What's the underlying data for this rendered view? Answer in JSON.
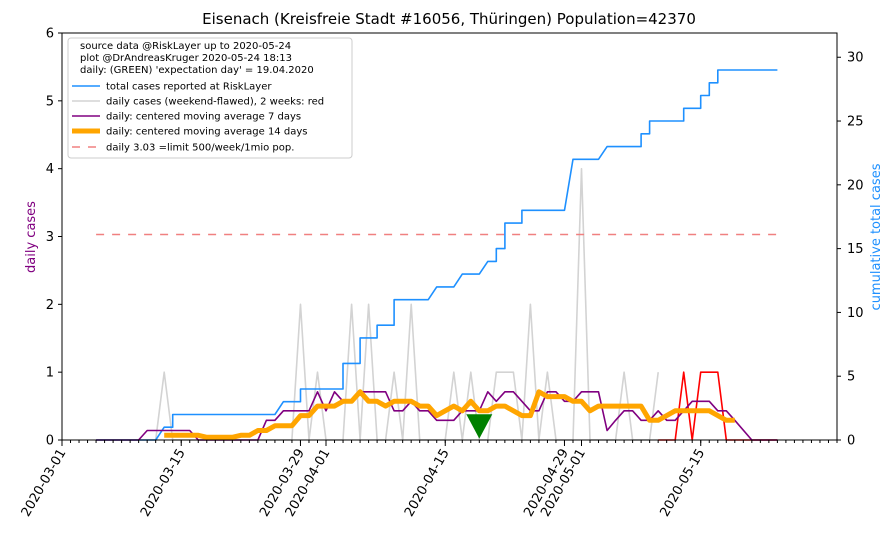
{
  "chart_data": {
    "type": "line",
    "title": "Eisenach (Kreisfreie Stadt #16056, Thüringen) Population=42370",
    "ylabel_left": "daily cases",
    "ylabel_right": "cumulative total cases",
    "ylim_left": [
      0,
      6
    ],
    "ylim_right": [
      0,
      31.9
    ],
    "yticks_left": [
      "0",
      "1",
      "2",
      "3",
      "4",
      "5",
      "6"
    ],
    "yticks_right": [
      "0",
      "5",
      "10",
      "15",
      "20",
      "25",
      "30"
    ],
    "xlim": [
      "2020-03-01",
      "2020-05-31"
    ],
    "xtick_labels": [
      "2020-03-01",
      "2020-03-15",
      "2020-03-29",
      "2020-04-01",
      "2020-04-15",
      "2020-04-29",
      "2020-05-01",
      "2020-05-15"
    ],
    "legend_position": "top-left",
    "legend_header": [
      "source data @RiskLayer up to 2020-05-24",
      "plot @DrAndreasKruger 2020-05-24 18:13",
      "daily: (GREEN) 'expectation day' = 19.04.2020"
    ],
    "expectation_day": "2020-04-19",
    "colors": {
      "total": "#1e90ff",
      "daily": "#d3d3d3",
      "daily_recent": "#ff0000",
      "ma7": "#800080",
      "ma14": "#ffa500",
      "limit": "#f08080",
      "expectation_marker": "#008000",
      "left_axis_label": "#800080",
      "right_axis_label": "#1e90ff"
    },
    "series": [
      {
        "name": "total cases reported at RiskLayer",
        "axis": "right",
        "x": [
          "2020-03-05",
          "2020-03-11",
          "2020-03-13",
          "2020-03-14",
          "2020-03-25",
          "2020-03-27",
          "2020-03-28",
          "2020-03-29",
          "2020-03-30",
          "2020-04-02",
          "2020-04-03",
          "2020-04-04",
          "2020-04-05",
          "2020-04-06",
          "2020-04-07",
          "2020-04-08",
          "2020-04-09",
          "2020-04-10",
          "2020-04-11",
          "2020-04-14",
          "2020-04-15",
          "2020-04-17",
          "2020-04-18",
          "2020-04-20",
          "2020-04-21",
          "2020-04-22",
          "2020-04-23",
          "2020-04-24",
          "2020-04-25",
          "2020-04-26",
          "2020-04-30",
          "2020-05-01",
          "2020-05-04",
          "2020-05-05",
          "2020-05-07",
          "2020-05-08",
          "2020-05-09",
          "2020-05-12",
          "2020-05-13",
          "2020-05-14",
          "2020-05-15",
          "2020-05-16",
          "2020-05-17",
          "2020-05-18",
          "2020-05-24"
        ],
        "y": [
          0,
          0,
          1,
          2,
          2,
          3,
          3,
          4,
          4,
          4,
          6,
          6,
          8,
          8,
          9,
          9,
          11,
          11,
          11,
          12,
          12,
          13,
          13,
          14,
          15,
          17,
          17,
          18,
          18,
          18,
          22,
          22,
          23,
          23,
          23,
          24,
          25,
          25,
          26,
          26,
          27,
          28,
          29,
          29,
          29
        ]
      },
      {
        "name": "daily cases (weekend-flawed), 2 weeks: red",
        "axis": "left",
        "x": [
          "2020-03-05",
          "2020-03-06",
          "2020-03-07",
          "2020-03-08",
          "2020-03-09",
          "2020-03-10",
          "2020-03-11",
          "2020-03-12",
          "2020-03-13",
          "2020-03-14",
          "2020-03-15",
          "2020-03-16",
          "2020-03-17",
          "2020-03-18",
          "2020-03-19",
          "2020-03-20",
          "2020-03-21",
          "2020-03-22",
          "2020-03-23",
          "2020-03-24",
          "2020-03-25",
          "2020-03-26",
          "2020-03-27",
          "2020-03-28",
          "2020-03-29",
          "2020-03-30",
          "2020-03-31",
          "2020-04-01",
          "2020-04-02",
          "2020-04-03",
          "2020-04-04",
          "2020-04-05",
          "2020-04-06",
          "2020-04-07",
          "2020-04-08",
          "2020-04-09",
          "2020-04-10",
          "2020-04-11",
          "2020-04-12",
          "2020-04-13",
          "2020-04-14",
          "2020-04-15",
          "2020-04-16",
          "2020-04-17",
          "2020-04-18",
          "2020-04-19",
          "2020-04-20",
          "2020-04-21",
          "2020-04-22",
          "2020-04-23",
          "2020-04-24",
          "2020-04-25",
          "2020-04-26",
          "2020-04-27",
          "2020-04-28",
          "2020-04-29",
          "2020-04-30",
          "2020-05-01",
          "2020-05-02",
          "2020-05-03",
          "2020-05-04",
          "2020-05-05",
          "2020-05-06",
          "2020-05-07",
          "2020-05-08",
          "2020-05-09",
          "2020-05-10"
        ],
        "y": [
          0,
          0,
          0,
          0,
          0,
          0,
          0,
          0,
          1,
          0,
          0,
          0,
          0,
          0,
          0,
          0,
          0,
          0,
          0,
          0,
          0,
          0,
          0,
          0,
          2,
          0,
          1,
          0,
          0,
          0,
          2,
          0,
          2,
          0,
          0,
          1,
          0,
          2,
          0,
          0,
          0,
          0,
          1,
          0,
          1,
          0,
          0,
          1,
          1,
          1,
          0,
          2,
          0,
          1,
          0,
          0,
          0,
          4,
          0,
          0,
          0,
          0,
          1,
          0,
          0,
          0,
          1
        ]
      },
      {
        "name": "daily cases, last 2 weeks (red)",
        "axis": "left",
        "x": [
          "2020-05-10",
          "2020-05-11",
          "2020-05-12",
          "2020-05-13",
          "2020-05-14",
          "2020-05-15",
          "2020-05-16",
          "2020-05-17",
          "2020-05-18",
          "2020-05-19",
          "2020-05-20",
          "2020-05-21",
          "2020-05-22",
          "2020-05-23",
          "2020-05-24"
        ],
        "y": [
          0,
          0,
          0,
          1,
          0,
          1,
          1,
          1,
          0,
          0,
          0,
          0,
          0,
          0,
          0
        ]
      },
      {
        "name": "daily: centered moving average 7 days",
        "axis": "left",
        "x": [
          "2020-03-05",
          "2020-03-10",
          "2020-03-11",
          "2020-03-12",
          "2020-03-13",
          "2020-03-16",
          "2020-03-17",
          "2020-03-18",
          "2020-03-24",
          "2020-03-25",
          "2020-03-26",
          "2020-03-27",
          "2020-03-28",
          "2020-03-29",
          "2020-03-30",
          "2020-03-31",
          "2020-04-01",
          "2020-04-02",
          "2020-04-03",
          "2020-04-04",
          "2020-04-05",
          "2020-04-06",
          "2020-04-07",
          "2020-04-08",
          "2020-04-09",
          "2020-04-10",
          "2020-04-11",
          "2020-04-12",
          "2020-04-13",
          "2020-04-14",
          "2020-04-15",
          "2020-04-16",
          "2020-04-17",
          "2020-04-18",
          "2020-04-19",
          "2020-04-20",
          "2020-04-21",
          "2020-04-22",
          "2020-04-23",
          "2020-04-24",
          "2020-04-25",
          "2020-04-26",
          "2020-04-27",
          "2020-04-28",
          "2020-04-29",
          "2020-04-30",
          "2020-05-01",
          "2020-05-02",
          "2020-05-03",
          "2020-05-04",
          "2020-05-05",
          "2020-05-06",
          "2020-05-07",
          "2020-05-08",
          "2020-05-09",
          "2020-05-10",
          "2020-05-11",
          "2020-05-12",
          "2020-05-13",
          "2020-05-14",
          "2020-05-15",
          "2020-05-16",
          "2020-05-17",
          "2020-05-18",
          "2020-05-19",
          "2020-05-21",
          "2020-05-24"
        ],
        "y": [
          0,
          0,
          0.14,
          0.14,
          0.14,
          0.14,
          0,
          0,
          0,
          0.29,
          0.29,
          0.43,
          0.43,
          0.43,
          0.43,
          0.71,
          0.43,
          0.71,
          0.57,
          0.57,
          0.71,
          0.71,
          0.71,
          0.71,
          0.43,
          0.43,
          0.57,
          0.43,
          0.43,
          0.29,
          0.29,
          0.29,
          0.43,
          0.43,
          0.43,
          0.71,
          0.57,
          0.71,
          0.71,
          0.57,
          0.43,
          0.43,
          0.71,
          0.71,
          0.57,
          0.57,
          0.71,
          0.71,
          0.71,
          0.14,
          0.29,
          0.43,
          0.43,
          0.29,
          0.29,
          0.43,
          0.29,
          0.29,
          0.43,
          0.57,
          0.57,
          0.57,
          0.43,
          0.43,
          0.29,
          0,
          0
        ]
      },
      {
        "name": "daily: centered moving average 14 days",
        "axis": "left",
        "x": [
          "2020-03-13",
          "2020-03-14",
          "2020-03-15",
          "2020-03-16",
          "2020-03-17",
          "2020-03-18",
          "2020-03-19",
          "2020-03-20",
          "2020-03-21",
          "2020-03-22",
          "2020-03-23",
          "2020-03-24",
          "2020-03-25",
          "2020-03-26",
          "2020-03-27",
          "2020-03-28",
          "2020-03-29",
          "2020-03-30",
          "2020-03-31",
          "2020-04-01",
          "2020-04-02",
          "2020-04-03",
          "2020-04-04",
          "2020-04-05",
          "2020-04-06",
          "2020-04-07",
          "2020-04-08",
          "2020-04-09",
          "2020-04-10",
          "2020-04-11",
          "2020-04-12",
          "2020-04-13",
          "2020-04-14",
          "2020-04-15",
          "2020-04-16",
          "2020-04-17",
          "2020-04-18",
          "2020-04-19",
          "2020-04-20",
          "2020-04-21",
          "2020-04-22",
          "2020-04-23",
          "2020-04-24",
          "2020-04-25",
          "2020-04-26",
          "2020-04-27",
          "2020-04-28",
          "2020-04-29",
          "2020-04-30",
          "2020-05-01",
          "2020-05-02",
          "2020-05-03",
          "2020-05-04",
          "2020-05-05",
          "2020-05-06",
          "2020-05-07",
          "2020-05-08",
          "2020-05-09",
          "2020-05-10",
          "2020-05-11",
          "2020-05-12",
          "2020-05-13",
          "2020-05-14",
          "2020-05-15",
          "2020-05-16",
          "2020-05-17",
          "2020-05-18",
          "2020-05-19"
        ],
        "y": [
          0.07,
          0.07,
          0.07,
          0.07,
          0.07,
          0.04,
          0.04,
          0.04,
          0.04,
          0.07,
          0.07,
          0.14,
          0.14,
          0.21,
          0.21,
          0.21,
          0.36,
          0.36,
          0.5,
          0.5,
          0.5,
          0.57,
          0.57,
          0.71,
          0.57,
          0.57,
          0.5,
          0.57,
          0.57,
          0.57,
          0.5,
          0.5,
          0.36,
          0.43,
          0.5,
          0.43,
          0.57,
          0.43,
          0.43,
          0.5,
          0.5,
          0.43,
          0.36,
          0.36,
          0.71,
          0.64,
          0.64,
          0.64,
          0.57,
          0.57,
          0.43,
          0.5,
          0.5,
          0.5,
          0.5,
          0.5,
          0.5,
          0.29,
          0.29,
          0.36,
          0.43,
          0.43,
          0.43,
          0.43,
          0.43,
          0.36,
          0.29,
          0.29
        ]
      },
      {
        "name": "daily 3.03 =limit 500/week/1mio pop.",
        "axis": "left",
        "x": [
          "2020-03-05",
          "2020-05-24"
        ],
        "y": [
          3.03,
          3.03
        ]
      }
    ]
  }
}
